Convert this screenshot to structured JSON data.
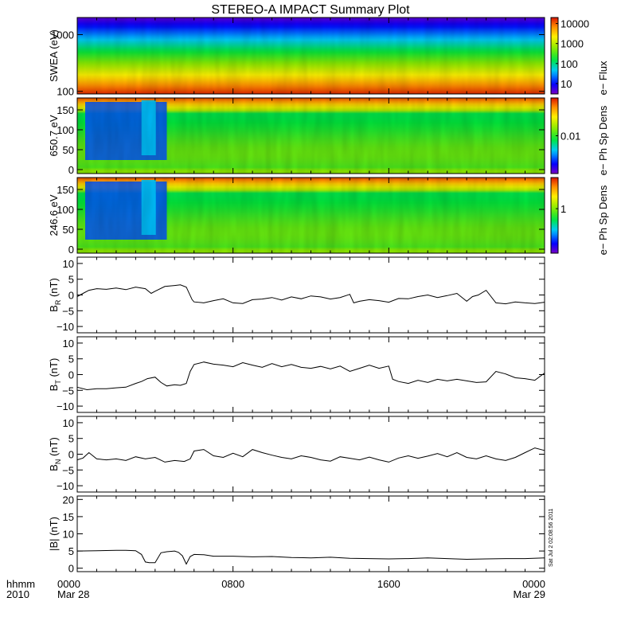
{
  "title": "STEREO-A IMPACT Summary Plot",
  "stamp": "Sat Jul  2 02:08:56 2011",
  "x_axis": {
    "row1_label": "hhmm",
    "row2_label": "2010",
    "range_hours": [
      0,
      24
    ],
    "ticks": [
      {
        "hour": 0,
        "label": "0000",
        "sublabel": "Mar 28"
      },
      {
        "hour": 8,
        "label": "0800",
        "sublabel": ""
      },
      {
        "hour": 16,
        "label": "1600",
        "sublabel": ""
      },
      {
        "hour": 24,
        "label": "0000",
        "sublabel": "Mar 29"
      }
    ]
  },
  "colors": {
    "line": "#000000",
    "axes": "#000000",
    "background": "#ffffff"
  },
  "chart_data": [
    {
      "type": "heatmap",
      "id": "swea",
      "ylabel": "SWEA (eV)",
      "yscale": "log",
      "ylim": [
        90,
        2000
      ],
      "yticks": [
        {
          "v": 100,
          "label": "100"
        },
        {
          "v": 1000,
          "label": "1000"
        }
      ],
      "colorbar": {
        "label": "e− Flux",
        "scale": "log",
        "range": [
          3,
          20000
        ],
        "ticks": [
          {
            "v": 10,
            "label": "10"
          },
          {
            "v": 100,
            "label": "100"
          },
          {
            "v": 1000,
            "label": "1000"
          },
          {
            "v": 10000,
            "label": "10000"
          }
        ]
      }
    },
    {
      "type": "heatmap",
      "id": "pad650",
      "ylabel": "650.7 eV",
      "ylim": [
        -10,
        180
      ],
      "yticks": [
        {
          "v": 0,
          "label": "0"
        },
        {
          "v": 50,
          "label": "50"
        },
        {
          "v": 100,
          "label": "100"
        },
        {
          "v": 150,
          "label": "150"
        }
      ],
      "colorbar": {
        "label": "e− Ph Sp Dens",
        "scale": "log",
        "range": [
          0.001,
          0.1
        ],
        "ticks": [
          {
            "v": 0.01,
            "label": "0.01"
          }
        ]
      }
    },
    {
      "type": "heatmap",
      "id": "pad246",
      "ylabel": "246.6 eV",
      "ylim": [
        -10,
        180
      ],
      "yticks": [
        {
          "v": 0,
          "label": "0"
        },
        {
          "v": 50,
          "label": "50"
        },
        {
          "v": 100,
          "label": "100"
        },
        {
          "v": 150,
          "label": "150"
        }
      ],
      "colorbar": {
        "label": "e− Ph Sp Dens",
        "scale": "log",
        "range": [
          0.1,
          5
        ],
        "ticks": [
          {
            "v": 1,
            "label": "1"
          }
        ]
      }
    },
    {
      "type": "line",
      "id": "br",
      "ylabel": "B",
      "ysub": "R",
      "yunit": "(nT)",
      "ylim": [
        -12,
        12
      ],
      "yticks": [
        {
          "v": -10,
          "label": "−10"
        },
        {
          "v": -5,
          "label": "−5"
        },
        {
          "v": 0,
          "label": "0"
        },
        {
          "v": 5,
          "label": "5"
        },
        {
          "v": 10,
          "label": "10"
        }
      ],
      "x": [
        0,
        0.3,
        0.6,
        1,
        1.5,
        2,
        2.5,
        3,
        3.5,
        3.8,
        4,
        4.5,
        5,
        5.3,
        5.6,
        5.9,
        6,
        6.5,
        7,
        7.5,
        8,
        8.5,
        9,
        9.5,
        10,
        10.5,
        11,
        11.5,
        12,
        12.5,
        13,
        13.5,
        14,
        14.2,
        14.5,
        15,
        15.5,
        16,
        16.5,
        17,
        17.5,
        18,
        18.5,
        19,
        19.5,
        20,
        20.3,
        20.6,
        21,
        21.5,
        22,
        22.5,
        23,
        23.5,
        24
      ],
      "y": [
        -0.5,
        0.5,
        1.5,
        2,
        1.8,
        2.2,
        1.7,
        2.5,
        2,
        0.5,
        1.2,
        2.7,
        3,
        3.2,
        2.5,
        -1.5,
        -2.2,
        -2.5,
        -1.8,
        -1.2,
        -2.5,
        -2.7,
        -1.5,
        -1.3,
        -0.8,
        -1.6,
        -0.6,
        -1.2,
        -0.3,
        -0.6,
        -1.3,
        -0.8,
        0.2,
        -2.5,
        -2,
        -1.5,
        -1.8,
        -2.3,
        -1.1,
        -1.2,
        -0.5,
        0,
        -0.8,
        -0.2,
        0.5,
        -2,
        -0.5,
        0,
        1.5,
        -2.5,
        -2.8,
        -2.2,
        -2.5,
        -2.7,
        -2.3
      ]
    },
    {
      "type": "line",
      "id": "bt",
      "ylabel": "B",
      "ysub": "T",
      "yunit": "(nT)",
      "ylim": [
        -12,
        12
      ],
      "yticks": [
        {
          "v": -10,
          "label": "−10"
        },
        {
          "v": -5,
          "label": "−5"
        },
        {
          "v": 0,
          "label": "0"
        },
        {
          "v": 5,
          "label": "5"
        },
        {
          "v": 10,
          "label": "10"
        }
      ],
      "x": [
        0,
        0.5,
        1,
        1.5,
        2,
        2.5,
        3,
        3.3,
        3.6,
        4,
        4.3,
        4.6,
        5,
        5.3,
        5.6,
        5.8,
        6,
        6.5,
        7,
        7.5,
        8,
        8.5,
        9,
        9.5,
        10,
        10.5,
        11,
        11.5,
        12,
        12.5,
        13,
        13.5,
        14,
        14.5,
        15,
        15.5,
        16,
        16.2,
        16.5,
        17,
        17.5,
        18,
        18.5,
        19,
        19.5,
        20,
        20.5,
        21,
        21.5,
        22,
        22.5,
        23,
        23.5,
        24
      ],
      "y": [
        -4,
        -4.8,
        -4.5,
        -4.5,
        -4.2,
        -4,
        -2.8,
        -2.2,
        -1.3,
        -0.8,
        -2.5,
        -3.6,
        -3.2,
        -3.4,
        -2.8,
        1,
        3.2,
        4,
        3.3,
        3,
        2.5,
        3.8,
        3,
        2.3,
        3.5,
        2.5,
        3.2,
        2.3,
        2,
        2.6,
        1.8,
        2.7,
        1,
        2,
        3,
        2,
        2.7,
        -1.5,
        -2.2,
        -2.8,
        -1.8,
        -2.5,
        -1.5,
        -2,
        -1.5,
        -2,
        -2.5,
        -2.3,
        1,
        0.2,
        -1,
        -1.3,
        -1.8,
        0.5
      ]
    },
    {
      "type": "line",
      "id": "bn",
      "ylabel": "B",
      "ysub": "N",
      "yunit": "(nT)",
      "ylim": [
        -12,
        12
      ],
      "yticks": [
        {
          "v": -10,
          "label": "−10"
        },
        {
          "v": -5,
          "label": "−5"
        },
        {
          "v": 0,
          "label": "0"
        },
        {
          "v": 5,
          "label": "5"
        },
        {
          "v": 10,
          "label": "10"
        }
      ],
      "x": [
        0,
        0.3,
        0.6,
        1,
        1.5,
        2,
        2.5,
        3,
        3.5,
        4,
        4.5,
        5,
        5.5,
        5.8,
        6,
        6.5,
        7,
        7.5,
        8,
        8.5,
        9,
        9.5,
        10,
        10.5,
        11,
        11.5,
        12,
        12.5,
        13,
        13.5,
        14,
        14.5,
        15,
        15.5,
        16,
        16.5,
        17,
        17.5,
        18,
        18.5,
        19,
        19.5,
        20,
        20.5,
        21,
        21.5,
        22,
        22.5,
        23,
        23.5,
        24
      ],
      "y": [
        -1.8,
        -1.2,
        0.5,
        -1.5,
        -1.8,
        -1.5,
        -2,
        -0.8,
        -1.5,
        -1,
        -2.5,
        -2,
        -2.3,
        -1.5,
        1,
        1.5,
        -0.5,
        -1,
        0.3,
        -0.8,
        1.5,
        0.5,
        -0.3,
        -1,
        -1.5,
        -0.5,
        -1,
        -1.8,
        -2.2,
        -0.8,
        -1.3,
        -1.8,
        -0.9,
        -1.8,
        -2.5,
        -1.2,
        -0.5,
        -1.3,
        -0.6,
        0.2,
        -0.8,
        0.5,
        -1,
        -1.5,
        -0.5,
        -1.5,
        -2,
        -1,
        0.5,
        2,
        1.2
      ]
    },
    {
      "type": "line",
      "id": "bmag",
      "ylabel": "|B|",
      "yunit": "(nT)",
      "ylim": [
        -1,
        21
      ],
      "yticks": [
        {
          "v": 0,
          "label": "0"
        },
        {
          "v": 5,
          "label": "5"
        },
        {
          "v": 10,
          "label": "10"
        },
        {
          "v": 15,
          "label": "15"
        },
        {
          "v": 20,
          "label": "20"
        }
      ],
      "x": [
        0,
        1,
        2,
        2.5,
        3,
        3.3,
        3.5,
        3.7,
        4,
        4.3,
        4.6,
        5,
        5.2,
        5.4,
        5.6,
        5.8,
        6,
        6.5,
        7,
        8,
        9,
        10,
        11,
        12,
        13,
        14,
        15,
        16,
        17,
        18,
        19,
        20,
        21,
        22,
        23,
        24
      ],
      "y": [
        5,
        5.1,
        5.2,
        5.2,
        5.1,
        4,
        1.8,
        1.6,
        1.6,
        4.5,
        4.8,
        5,
        4.6,
        3.6,
        1.2,
        3.4,
        4,
        3.9,
        3.5,
        3.5,
        3.3,
        3.4,
        3.1,
        3,
        3.2,
        2.9,
        2.8,
        2.7,
        2.8,
        3,
        2.8,
        2.6,
        2.7,
        2.8,
        2.8,
        3
      ]
    }
  ]
}
